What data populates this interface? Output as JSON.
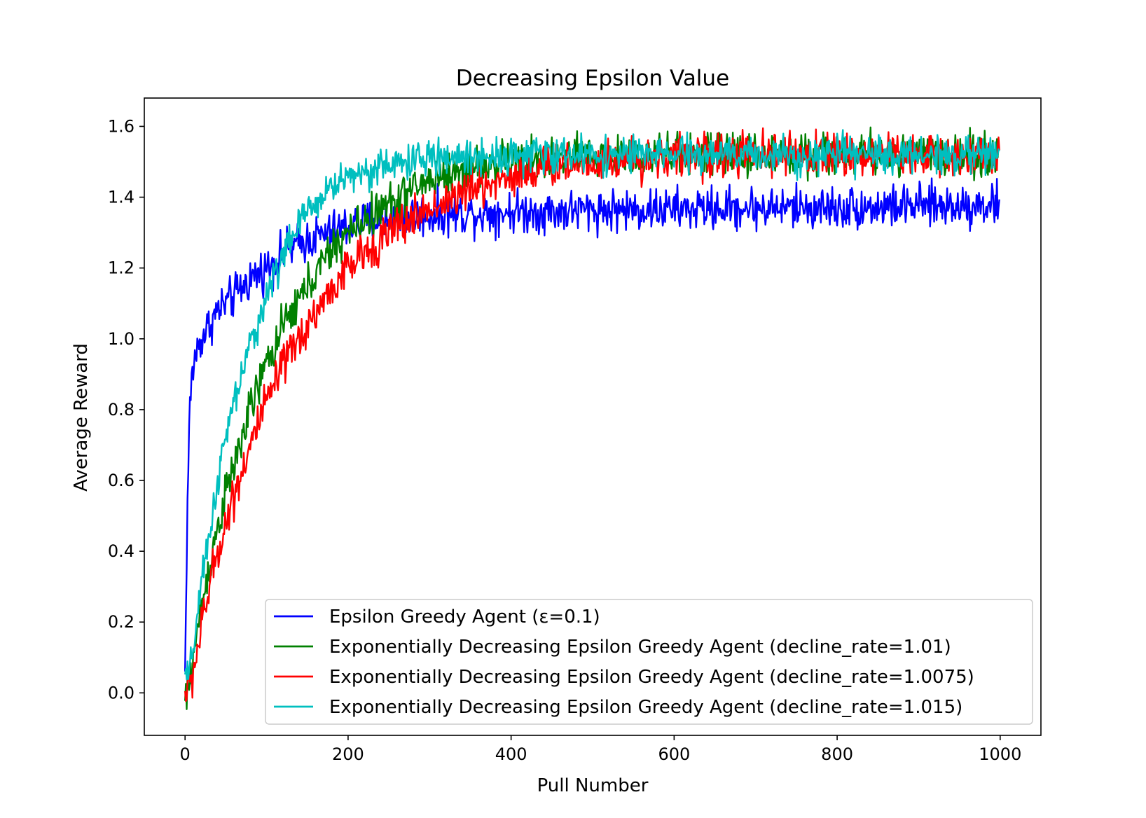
{
  "chart_data": {
    "type": "line",
    "title": "Decreasing Epsilon Value",
    "xlabel": "Pull Number",
    "ylabel": "Average Reward",
    "xlim": [
      -50,
      1050
    ],
    "ylim": [
      -0.12,
      1.68
    ],
    "xticks": [
      0,
      200,
      400,
      600,
      800,
      1000
    ],
    "xtick_labels": [
      "0",
      "200",
      "400",
      "600",
      "800",
      "1000"
    ],
    "yticks": [
      0.0,
      0.2,
      0.4,
      0.6,
      0.8,
      1.0,
      1.2,
      1.4,
      1.6
    ],
    "ytick_labels": [
      "0.0",
      "0.2",
      "0.4",
      "0.6",
      "0.8",
      "1.0",
      "1.2",
      "1.4",
      "1.6"
    ],
    "grid": false,
    "legend_position": "lower-right",
    "x_range": [
      0,
      999
    ],
    "series": [
      {
        "name": "Epsilon Greedy Agent (ε=0.1)",
        "color": "#0000ff",
        "x": [
          0,
          2,
          5,
          8,
          12,
          20,
          30,
          40,
          60,
          80,
          100,
          120,
          150,
          180,
          200,
          250,
          300,
          350,
          400,
          450,
          500,
          600,
          700,
          800,
          900,
          999
        ],
        "y": [
          0.05,
          0.4,
          0.76,
          0.88,
          0.95,
          1.0,
          1.04,
          1.08,
          1.12,
          1.17,
          1.2,
          1.24,
          1.28,
          1.3,
          1.32,
          1.34,
          1.35,
          1.355,
          1.36,
          1.36,
          1.365,
          1.365,
          1.37,
          1.37,
          1.375,
          1.38
        ],
        "noise": 0.03
      },
      {
        "name": "Exponentially Decreasing Epsilon Greedy Agent (decline_rate=1.01)",
        "color": "#008000",
        "x": [
          0,
          5,
          10,
          20,
          30,
          40,
          50,
          60,
          80,
          100,
          120,
          150,
          180,
          200,
          250,
          300,
          350,
          400,
          450,
          500,
          600,
          700,
          800,
          900,
          999
        ],
        "y": [
          -0.03,
          0.02,
          0.1,
          0.24,
          0.36,
          0.47,
          0.56,
          0.64,
          0.8,
          0.93,
          1.03,
          1.15,
          1.25,
          1.3,
          1.38,
          1.45,
          1.48,
          1.5,
          1.51,
          1.515,
          1.52,
          1.52,
          1.52,
          1.52,
          1.52
        ],
        "noise": 0.03
      },
      {
        "name": "Exponentially Decreasing Epsilon Greedy Agent (decline_rate=1.0075)",
        "color": "#ff0000",
        "x": [
          0,
          5,
          10,
          20,
          30,
          40,
          50,
          60,
          80,
          100,
          120,
          150,
          180,
          200,
          250,
          300,
          350,
          400,
          450,
          500,
          600,
          700,
          800,
          900,
          999
        ],
        "y": [
          0.0,
          0.01,
          0.06,
          0.18,
          0.3,
          0.4,
          0.48,
          0.56,
          0.7,
          0.82,
          0.92,
          1.04,
          1.14,
          1.2,
          1.3,
          1.37,
          1.42,
          1.46,
          1.49,
          1.5,
          1.515,
          1.52,
          1.52,
          1.52,
          1.52
        ],
        "noise": 0.03
      },
      {
        "name": "Exponentially Decreasing Epsilon Greedy Agent (decline_rate=1.015)",
        "color": "#00bfbf",
        "x": [
          0,
          5,
          10,
          20,
          30,
          40,
          50,
          60,
          80,
          100,
          120,
          150,
          180,
          200,
          250,
          300,
          350,
          400,
          450,
          500,
          600,
          700,
          800,
          900,
          999
        ],
        "y": [
          0.05,
          0.04,
          0.13,
          0.3,
          0.45,
          0.6,
          0.72,
          0.82,
          0.98,
          1.12,
          1.24,
          1.36,
          1.43,
          1.46,
          1.49,
          1.51,
          1.515,
          1.52,
          1.52,
          1.52,
          1.52,
          1.52,
          1.52,
          1.52,
          1.52
        ],
        "noise": 0.025
      }
    ]
  }
}
